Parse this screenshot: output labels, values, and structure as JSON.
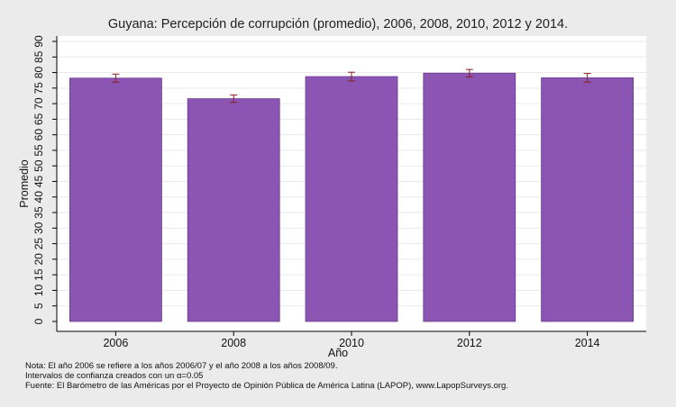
{
  "chart_data": {
    "type": "bar",
    "title": "Guyana: Percepción de corrupción (promedio), 2006, 2008, 2010, 2012 y 2014.",
    "xlabel": "Año",
    "ylabel": "Promedio",
    "categories": [
      "2006",
      "2008",
      "2010",
      "2012",
      "2014"
    ],
    "values": [
      78.2,
      71.6,
      78.7,
      79.8,
      78.3
    ],
    "ci_low": [
      76.9,
      70.4,
      77.3,
      78.6,
      76.9
    ],
    "ci_high": [
      79.5,
      72.8,
      80.1,
      81.0,
      79.7
    ],
    "ylim": [
      0,
      90
    ],
    "yticks": [
      0,
      5,
      10,
      15,
      20,
      25,
      30,
      35,
      40,
      45,
      50,
      55,
      60,
      65,
      70,
      75,
      80,
      85,
      90
    ],
    "grid": true,
    "bar_color": "#8b56b3",
    "error_bar_color": "#8b2020"
  },
  "notes": {
    "line1": "Nota: El año 2006 se refiere a los años 2006/07 y el año 2008 a los años 2008/09.",
    "line2": "Intervalos de confianza creados con un α=0.05",
    "source": "Fuente: El Barómetro de las Américas por el Proyecto de Opinión Pública de América Latina (LAPOP), www.LapopSurveys.org."
  }
}
